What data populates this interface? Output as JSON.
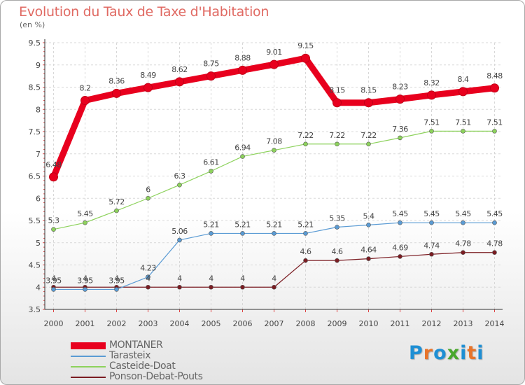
{
  "title": "Evolution du Taux de Taxe d'Habitation",
  "unit": "(en %)",
  "logo": {
    "letters": [
      "P",
      "r",
      "o",
      "x",
      "i",
      "t",
      "i"
    ],
    "colors": [
      "#1f8fd4",
      "#e8742a",
      "#1f8fd4",
      "#4aa82e",
      "#1f8fd4",
      "#e8742a",
      "#1f8fd4"
    ]
  },
  "chart_data": {
    "type": "line",
    "x": [
      2000,
      2001,
      2002,
      2003,
      2004,
      2005,
      2006,
      2007,
      2008,
      2009,
      2010,
      2011,
      2012,
      2013,
      2014
    ],
    "ylim": [
      3.5,
      9.5
    ],
    "yticks": [
      3.5,
      4,
      4.5,
      5,
      5.5,
      6,
      6.5,
      7,
      7.5,
      8,
      8.5,
      9,
      9.5
    ],
    "grid": true,
    "legend": "bottom-left",
    "series": [
      {
        "name": "MONTANER",
        "color": "#e8001e",
        "width": 9,
        "marker": 6,
        "values": [
          6.48,
          8.2,
          8.36,
          8.49,
          8.62,
          8.75,
          8.88,
          9.01,
          9.15,
          8.15,
          8.15,
          8.23,
          8.32,
          8.4,
          8.48
        ],
        "labels": [
          "6.48",
          "8.2",
          "8.36",
          "8.49",
          "8.62",
          "8.75",
          "8.88",
          "9.01",
          "9.15",
          "8.15",
          "8.15",
          "8.23",
          "8.32",
          "8.4",
          "8.48"
        ]
      },
      {
        "name": "Tarasteix",
        "color": "#5a9bd4",
        "width": 1.2,
        "marker": 3,
        "values": [
          3.95,
          3.95,
          3.95,
          4.23,
          5.06,
          5.21,
          5.21,
          5.21,
          5.21,
          5.35,
          5.4,
          5.45,
          5.45,
          5.45,
          5.45
        ],
        "labels": [
          "3.95",
          "3.95",
          "3.95",
          "4.23",
          "5.06",
          "5.21",
          "5.21",
          "5.21",
          "5.21",
          "5.35",
          "5.4",
          "5.45",
          "5.45",
          "5.45",
          "5.45"
        ]
      },
      {
        "name": "Casteide-Doat",
        "color": "#8dd25c",
        "width": 1.2,
        "marker": 3,
        "values": [
          5.3,
          5.45,
          5.72,
          6,
          6.3,
          6.61,
          6.94,
          7.08,
          7.22,
          7.22,
          7.22,
          7.36,
          7.51,
          7.51,
          7.51
        ],
        "labels": [
          "5.3",
          "5.45",
          "5.72",
          "6",
          "6.3",
          "6.61",
          "6.94",
          "7.08",
          "7.22",
          "7.22",
          "7.22",
          "7.36",
          "7.51",
          "7.51",
          "7.51"
        ]
      },
      {
        "name": "Ponson-Debat-Pouts",
        "color": "#7b1c22",
        "width": 1.2,
        "marker": 3,
        "values": [
          4,
          4,
          4,
          4,
          4,
          4,
          4,
          4,
          4.6,
          4.6,
          4.64,
          4.69,
          4.74,
          4.78,
          4.78
        ],
        "labels": [
          "4",
          "4",
          "4",
          "4",
          "4",
          "4",
          "4",
          "4",
          "4.6",
          "4.6",
          "4.64",
          "4.69",
          "4.74",
          "4.78",
          "4.78"
        ]
      }
    ]
  }
}
